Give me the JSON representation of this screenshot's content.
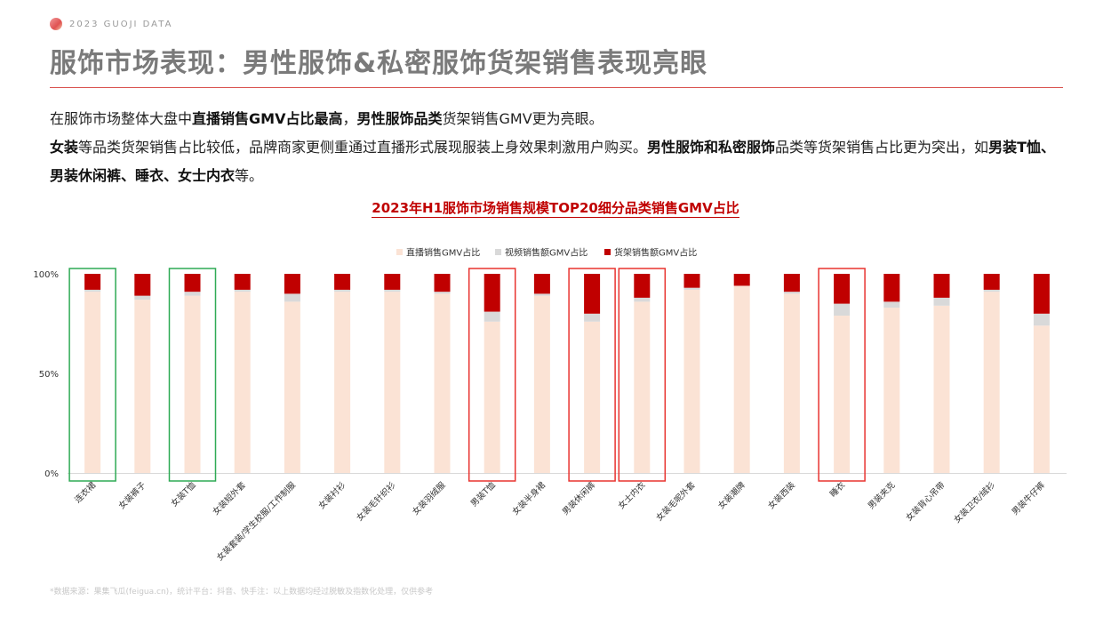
{
  "header": {
    "brand_text": "2023   GUOJI DATA",
    "title": "服饰市场表现：男性服饰&私密服饰货架销售表现亮眼"
  },
  "intro": {
    "line1": [
      {
        "text": "在服饰市场整体大盘中",
        "bold": false
      },
      {
        "text": "直播销售GMV占比最高",
        "bold": true
      },
      {
        "text": "，",
        "bold": false
      },
      {
        "text": "男性服饰品类",
        "bold": true
      },
      {
        "text": "货架销售GMV更为亮眼。",
        "bold": false
      }
    ],
    "line2": [
      {
        "text": "女装",
        "bold": true
      },
      {
        "text": "等品类货架销售占比较低，品牌商家更侧重通过直播形式展现服装上身效果刺激用户购买。",
        "bold": false
      },
      {
        "text": "男性服饰和私密服饰",
        "bold": true
      },
      {
        "text": "品类等货架销售占比更为突出，如",
        "bold": false
      },
      {
        "text": "男装T恤、男装休闲裤、睡衣、女士内衣",
        "bold": true
      },
      {
        "text": "等。",
        "bold": false
      }
    ]
  },
  "colors": {
    "live": "#fbe3d5",
    "video": "#d9d9d9",
    "shelf": "#c00000",
    "green_box": "#2eaa55",
    "red_box": "#e8332f"
  },
  "chart_data": {
    "type": "bar",
    "stacked": true,
    "title": "2023年H1服饰市场销售规模TOP20细分品类销售GMV占比",
    "legend_position": "top",
    "categories": [
      "连衣裙",
      "女装裤子",
      "女装T恤",
      "女装短外套",
      "女装套装/学生校服/工作制服",
      "女装衬衫",
      "女装毛针织衫",
      "女装羽绒服",
      "男装T恤",
      "女装半身裙",
      "男装休闲裤",
      "女士内衣",
      "女装毛呢外套",
      "女装潮牌",
      "女装西装",
      "睡衣",
      "男装夹克",
      "女装背心吊带",
      "女装卫衣/绒衫",
      "男装牛仔裤"
    ],
    "series": [
      {
        "name": "直播销售GMV占比",
        "values": [
          91,
          87,
          89,
          91,
          86,
          91,
          91,
          90,
          76,
          89,
          76,
          86,
          92,
          94,
          90,
          79,
          83,
          84,
          91,
          74
        ]
      },
      {
        "name": "视频销售额GMV占比",
        "values": [
          1,
          2,
          2,
          1,
          4,
          1,
          1,
          1,
          5,
          1,
          4,
          2,
          1,
          0,
          1,
          6,
          3,
          4,
          1,
          6
        ]
      },
      {
        "name": "货架销售额GMV占比",
        "values": [
          8,
          11,
          9,
          8,
          10,
          8,
          8,
          9,
          19,
          10,
          20,
          12,
          7,
          6,
          9,
          15,
          14,
          12,
          8,
          20
        ]
      }
    ],
    "y_ticks": [
      "0%",
      "50%",
      "100%"
    ],
    "ylim": [
      0,
      100
    ],
    "highlight_green": [
      0,
      2
    ],
    "highlight_red": [
      8,
      10,
      11,
      15
    ]
  },
  "footer": {
    "source": "*数据来源：果集飞瓜(feigua.cn)，统计平台：抖音、快手注：以上数据均经过脱敏及指数化处理，仅供参考"
  }
}
